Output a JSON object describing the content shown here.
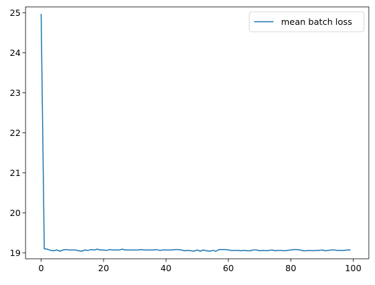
{
  "chart_data": {
    "type": "line",
    "title": "",
    "xlabel": "",
    "ylabel": "",
    "xlim": [
      -5,
      105
    ],
    "ylim": [
      18.85,
      25.15
    ],
    "x_ticks": [
      0,
      20,
      40,
      60,
      80,
      100
    ],
    "y_ticks": [
      19,
      20,
      21,
      22,
      23,
      24,
      25
    ],
    "grid": false,
    "legend": {
      "placement": "upper-right"
    },
    "series": [
      {
        "name": "mean batch loss",
        "color": "#1f77b4",
        "x": [
          0,
          1,
          2,
          3,
          4,
          5,
          6,
          7,
          8,
          9,
          10,
          11,
          12,
          13,
          14,
          15,
          16,
          17,
          18,
          19,
          20,
          21,
          22,
          23,
          24,
          25,
          26,
          27,
          28,
          29,
          30,
          31,
          32,
          33,
          34,
          35,
          36,
          37,
          38,
          39,
          40,
          41,
          42,
          43,
          44,
          45,
          46,
          47,
          48,
          49,
          50,
          51,
          52,
          53,
          54,
          55,
          56,
          57,
          58,
          59,
          60,
          61,
          62,
          63,
          64,
          65,
          66,
          67,
          68,
          69,
          70,
          71,
          72,
          73,
          74,
          75,
          76,
          77,
          78,
          79,
          80,
          81,
          82,
          83,
          84,
          85,
          86,
          87,
          88,
          89,
          90,
          91,
          92,
          93,
          94,
          95,
          96,
          97,
          98,
          99
        ],
        "y": [
          24.96,
          19.1,
          19.09,
          19.06,
          19.05,
          19.07,
          19.04,
          19.07,
          19.08,
          19.07,
          19.07,
          19.07,
          19.05,
          19.04,
          19.07,
          19.06,
          19.08,
          19.07,
          19.09,
          19.07,
          19.07,
          19.06,
          19.08,
          19.07,
          19.07,
          19.07,
          19.09,
          19.07,
          19.07,
          19.07,
          19.07,
          19.07,
          19.08,
          19.07,
          19.07,
          19.07,
          19.07,
          19.08,
          19.06,
          19.07,
          19.07,
          19.07,
          19.07,
          19.08,
          19.08,
          19.07,
          19.05,
          19.06,
          19.05,
          19.04,
          19.07,
          19.04,
          19.07,
          19.05,
          19.04,
          19.06,
          19.04,
          19.08,
          19.08,
          19.08,
          19.07,
          19.06,
          19.06,
          19.06,
          19.05,
          19.06,
          19.05,
          19.05,
          19.07,
          19.07,
          19.05,
          19.06,
          19.05,
          19.06,
          19.07,
          19.05,
          19.06,
          19.06,
          19.05,
          19.06,
          19.07,
          19.08,
          19.08,
          19.07,
          19.05,
          19.05,
          19.06,
          19.05,
          19.06,
          19.06,
          19.07,
          19.05,
          19.06,
          19.07,
          19.07,
          19.06,
          19.06,
          19.06,
          19.07,
          19.07
        ]
      }
    ]
  }
}
